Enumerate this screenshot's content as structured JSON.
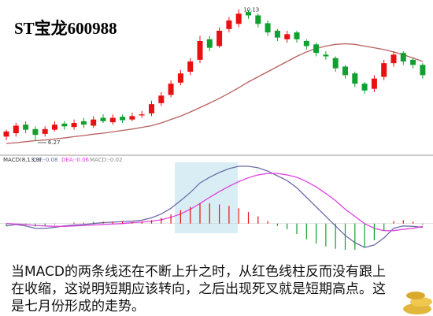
{
  "chart_data": [
    {
      "type": "candlestick",
      "title": "ST宝龙600988",
      "high_label": "10.13",
      "low_label": "6.27",
      "ylim": [
        5.9,
        10.4
      ],
      "up_color": "#e81010",
      "down_color": "#10a030",
      "open": [
        6.4,
        6.5,
        6.75,
        6.62,
        6.48,
        6.6,
        6.78,
        6.68,
        6.85,
        6.72,
        6.95,
        6.82,
        6.98,
        6.9,
        7.02,
        7.08,
        7.38,
        7.62,
        7.98,
        8.3,
        8.65,
        9.25,
        9.05,
        9.55,
        9.7,
        10.05,
        9.95,
        9.72,
        9.5,
        9.25,
        9.45,
        9.2,
        9.1,
        8.8,
        8.7,
        8.45,
        8.25,
        7.95,
        7.8,
        8.15,
        8.55,
        8.85,
        8.65,
        8.5
      ],
      "close": [
        6.55,
        6.72,
        6.6,
        6.45,
        6.62,
        6.75,
        6.7,
        6.8,
        6.75,
        6.9,
        6.85,
        6.95,
        6.88,
        7.0,
        7.05,
        7.35,
        7.6,
        7.95,
        8.25,
        8.6,
        9.2,
        9.0,
        9.5,
        9.8,
        10.0,
        9.95,
        9.7,
        9.45,
        9.3,
        9.4,
        9.25,
        9.05,
        8.85,
        8.75,
        8.4,
        8.2,
        7.95,
        7.75,
        8.1,
        8.55,
        8.8,
        8.6,
        8.5,
        8.2
      ],
      "high": [
        6.6,
        6.8,
        6.85,
        6.7,
        6.7,
        6.85,
        6.85,
        6.9,
        6.95,
        7.0,
        7.05,
        7.05,
        7.05,
        7.1,
        7.15,
        7.45,
        7.7,
        8.05,
        8.35,
        8.7,
        9.35,
        9.35,
        9.6,
        9.9,
        10.13,
        10.1,
        10.0,
        9.8,
        9.55,
        9.5,
        9.5,
        9.25,
        9.15,
        8.9,
        8.75,
        8.5,
        8.3,
        8.0,
        8.2,
        8.65,
        8.9,
        8.9,
        8.7,
        8.55
      ],
      "low": [
        6.3,
        6.4,
        6.5,
        6.27,
        6.4,
        6.55,
        6.6,
        6.6,
        6.65,
        6.65,
        6.8,
        6.75,
        6.8,
        6.85,
        6.95,
        7.0,
        7.3,
        7.55,
        7.9,
        8.2,
        8.55,
        8.9,
        9.0,
        9.45,
        9.6,
        9.85,
        9.6,
        9.35,
        9.2,
        9.15,
        9.15,
        8.95,
        8.75,
        8.65,
        8.3,
        8.1,
        7.85,
        7.65,
        7.7,
        8.05,
        8.45,
        8.5,
        8.4,
        8.1
      ],
      "ma": {
        "color": "#b86060",
        "values": [
          6.2,
          6.22,
          6.25,
          6.28,
          6.3,
          6.33,
          6.36,
          6.4,
          6.43,
          6.47,
          6.5,
          6.54,
          6.58,
          6.62,
          6.67,
          6.72,
          6.8,
          6.9,
          7.0,
          7.12,
          7.25,
          7.38,
          7.52,
          7.67,
          7.83,
          8.0,
          8.15,
          8.3,
          8.45,
          8.6,
          8.75,
          8.88,
          8.98,
          9.05,
          9.1,
          9.12,
          9.1,
          9.05,
          9.0,
          8.95,
          8.88,
          8.8,
          8.7,
          8.6
        ]
      }
    },
    {
      "type": "macd",
      "legend": [
        "MACD(8,13,9)",
        "DIF:-0.08",
        "DEA:-0.06",
        "MACD:-0.02"
      ],
      "ylim": [
        -0.6,
        1.25
      ],
      "series": [
        {
          "name": "DIF",
          "color": "#6c6ca8",
          "values": [
            -0.05,
            -0.02,
            -0.05,
            -0.1,
            -0.1,
            -0.08,
            -0.05,
            -0.03,
            -0.02,
            0.0,
            0.02,
            0.03,
            0.04,
            0.05,
            0.07,
            0.12,
            0.2,
            0.32,
            0.48,
            0.65,
            0.85,
            0.97,
            1.07,
            1.15,
            1.2,
            1.2,
            1.17,
            1.1,
            1.0,
            0.9,
            0.75,
            0.55,
            0.35,
            0.15,
            -0.05,
            -0.25,
            -0.4,
            -0.5,
            -0.45,
            -0.3,
            -0.1,
            -0.05,
            -0.06,
            -0.08
          ]
        },
        {
          "name": "DEA",
          "color": "#e040e0",
          "values": [
            0.0,
            -0.01,
            -0.02,
            -0.04,
            -0.05,
            -0.06,
            -0.06,
            -0.05,
            -0.04,
            -0.03,
            -0.02,
            -0.01,
            0.0,
            0.02,
            0.03,
            0.05,
            0.08,
            0.13,
            0.2,
            0.3,
            0.42,
            0.55,
            0.67,
            0.78,
            0.88,
            0.96,
            1.02,
            1.05,
            1.05,
            1.02,
            0.97,
            0.88,
            0.77,
            0.63,
            0.48,
            0.3,
            0.15,
            0.0,
            -0.1,
            -0.15,
            -0.15,
            -0.12,
            -0.1,
            -0.06
          ]
        },
        {
          "name": "MACD",
          "up_color": "#e81010",
          "down_color": "#10a030",
          "values": [
            -0.05,
            0.0,
            -0.03,
            -0.06,
            -0.05,
            -0.02,
            0.0,
            0.02,
            0.02,
            0.03,
            0.04,
            0.04,
            0.04,
            0.03,
            0.04,
            0.07,
            0.12,
            0.19,
            0.28,
            0.35,
            0.43,
            0.42,
            0.4,
            0.37,
            0.32,
            0.24,
            0.15,
            0.05,
            -0.05,
            -0.12,
            -0.22,
            -0.33,
            -0.42,
            -0.48,
            -0.53,
            -0.55,
            -0.55,
            -0.5,
            -0.35,
            -0.15,
            0.05,
            0.07,
            0.04,
            -0.02
          ]
        }
      ]
    }
  ],
  "caption": [
    "当MACD的两条线还在不断上升之时，从红色线柱反而没有跟上",
    "在收缩，这说明短期应该转向，之后出现死叉就是短期高点。这",
    "是七月份形成的走势。"
  ]
}
